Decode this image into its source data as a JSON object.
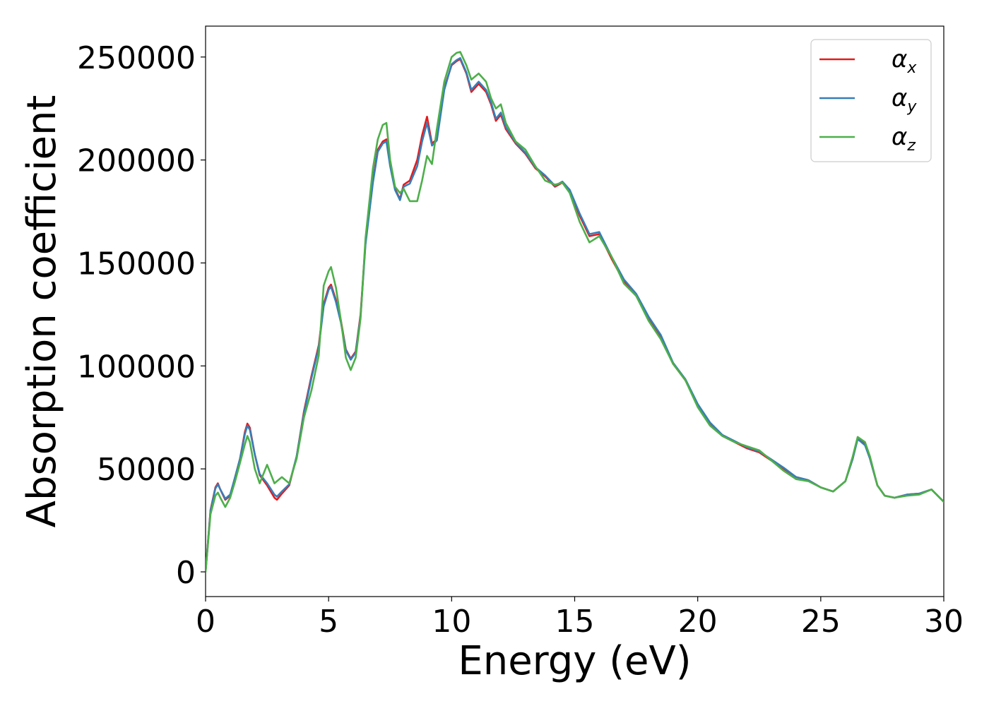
{
  "chart_data": {
    "type": "line",
    "xlabel": "Energy (eV)",
    "ylabel": "Absorption coefficient",
    "xlim": [
      0,
      30
    ],
    "ylim": [
      -12000,
      265000
    ],
    "xticks": [
      0,
      5,
      10,
      15,
      20,
      25,
      30
    ],
    "xtick_labels": [
      "0",
      "5",
      "10",
      "15",
      "20",
      "25",
      "30"
    ],
    "yticks": [
      0,
      50000,
      100000,
      150000,
      200000,
      250000
    ],
    "ytick_labels": [
      "0",
      "50000",
      "100000",
      "150000",
      "200000",
      "250000"
    ],
    "grid": false,
    "legend_position": "top-right",
    "series": [
      {
        "name": "α",
        "subscript": "x",
        "color": "#e41a1c",
        "x": [
          0,
          0.2,
          0.4,
          0.5,
          0.6,
          0.8,
          1.0,
          1.2,
          1.4,
          1.6,
          1.7,
          1.8,
          2.0,
          2.2,
          2.5,
          2.8,
          2.9,
          3.1,
          3.4,
          3.7,
          4.0,
          4.3,
          4.6,
          4.8,
          5.0,
          5.1,
          5.3,
          5.5,
          5.7,
          5.9,
          6.1,
          6.3,
          6.5,
          6.8,
          7.0,
          7.2,
          7.35,
          7.5,
          7.7,
          7.9,
          8.05,
          8.3,
          8.6,
          8.8,
          9.0,
          9.2,
          9.4,
          9.7,
          10.0,
          10.2,
          10.35,
          10.6,
          10.8,
          11.1,
          11.4,
          11.6,
          11.8,
          12.0,
          12.2,
          12.6,
          13.0,
          13.4,
          13.8,
          14.2,
          14.5,
          14.8,
          15.2,
          15.6,
          16.0,
          16.5,
          17.0,
          17.5,
          18.0,
          18.5,
          19.0,
          19.5,
          20.0,
          20.5,
          21.0,
          21.5,
          22.0,
          22.5,
          23.0,
          23.5,
          24.0,
          24.5,
          25.0,
          25.5,
          26.0,
          26.3,
          26.5,
          26.8,
          27.0,
          27.3,
          27.6,
          28.0,
          28.5,
          29.0,
          29.5,
          30.0
        ],
        "y": [
          0,
          30000,
          41000,
          43000,
          40000,
          35000,
          37000,
          46000,
          55000,
          68000,
          72000,
          70000,
          57000,
          47000,
          42000,
          36000,
          35000,
          38000,
          42000,
          56000,
          78000,
          95000,
          110000,
          130000,
          138000,
          139500,
          132000,
          122000,
          108000,
          103500,
          107000,
          125000,
          160000,
          190000,
          205000,
          209000,
          210000,
          198000,
          186000,
          181000,
          188000,
          190000,
          200000,
          212000,
          221000,
          208000,
          210000,
          235000,
          246000,
          248000,
          249000,
          242000,
          233000,
          237000,
          233000,
          227000,
          219000,
          222000,
          215000,
          208000,
          203000,
          196000,
          192000,
          187000,
          189000,
          185000,
          173000,
          163000,
          164000,
          152000,
          141000,
          134000,
          123000,
          114000,
          101000,
          93000,
          81000,
          72000,
          66000,
          63000,
          60000,
          58000,
          54000,
          50000,
          46000,
          44500,
          41000,
          39000,
          44000,
          55000,
          65000,
          62000,
          55000,
          42000,
          37000,
          36000,
          37500,
          38000,
          40000,
          34000
        ]
      },
      {
        "name": "α",
        "subscript": "y",
        "color": "#377eb8",
        "x": [
          0,
          0.2,
          0.4,
          0.5,
          0.6,
          0.8,
          1.0,
          1.2,
          1.4,
          1.6,
          1.7,
          1.8,
          2.0,
          2.2,
          2.5,
          2.8,
          2.9,
          3.1,
          3.4,
          3.7,
          4.0,
          4.3,
          4.6,
          4.8,
          5.0,
          5.1,
          5.3,
          5.5,
          5.7,
          5.9,
          6.1,
          6.3,
          6.5,
          6.8,
          7.0,
          7.2,
          7.35,
          7.5,
          7.7,
          7.9,
          8.05,
          8.3,
          8.6,
          8.8,
          9.0,
          9.2,
          9.4,
          9.7,
          10.0,
          10.2,
          10.35,
          10.6,
          10.8,
          11.1,
          11.4,
          11.6,
          11.8,
          12.0,
          12.2,
          12.6,
          13.0,
          13.4,
          13.8,
          14.2,
          14.5,
          14.8,
          15.2,
          15.6,
          16.0,
          16.5,
          17.0,
          17.5,
          18.0,
          18.5,
          19.0,
          19.5,
          20.0,
          20.5,
          21.0,
          21.5,
          22.0,
          22.5,
          23.0,
          23.5,
          24.0,
          24.5,
          25.0,
          25.5,
          26.0,
          26.3,
          26.5,
          26.8,
          27.0,
          27.3,
          27.6,
          28.0,
          28.5,
          29.0,
          29.5,
          30.0
        ],
        "y": [
          0,
          29500,
          40500,
          42500,
          40000,
          35500,
          37500,
          46000,
          55000,
          67000,
          71000,
          69000,
          57000,
          47500,
          43000,
          37500,
          36500,
          39000,
          42500,
          56000,
          77000,
          94000,
          109000,
          129000,
          137000,
          138500,
          131000,
          121000,
          107500,
          103000,
          106500,
          124000,
          159000,
          189000,
          204000,
          208000,
          209000,
          197000,
          185500,
          180500,
          187000,
          188500,
          197000,
          209000,
          218000,
          207000,
          209500,
          234000,
          246500,
          248500,
          249500,
          242500,
          234000,
          238000,
          234000,
          228000,
          220000,
          223000,
          216000,
          208500,
          203500,
          196500,
          192500,
          187500,
          189500,
          185500,
          174000,
          164000,
          165000,
          153000,
          142000,
          135000,
          124000,
          115000,
          101500,
          93500,
          81500,
          72500,
          66500,
          63500,
          60500,
          58500,
          54500,
          50500,
          46000,
          44500,
          41000,
          39000,
          44000,
          55000,
          64500,
          61500,
          55000,
          42000,
          37000,
          36000,
          37500,
          38000,
          40000,
          34000
        ]
      },
      {
        "name": "α",
        "subscript": "z",
        "color": "#4daf4a",
        "x": [
          0,
          0.2,
          0.4,
          0.5,
          0.6,
          0.8,
          1.0,
          1.2,
          1.4,
          1.6,
          1.7,
          1.8,
          2.0,
          2.2,
          2.5,
          2.8,
          2.9,
          3.1,
          3.4,
          3.7,
          4.0,
          4.3,
          4.6,
          4.8,
          5.0,
          5.1,
          5.3,
          5.5,
          5.7,
          5.9,
          6.1,
          6.3,
          6.5,
          6.8,
          7.0,
          7.2,
          7.35,
          7.5,
          7.7,
          7.9,
          8.05,
          8.3,
          8.6,
          8.8,
          9.0,
          9.2,
          9.4,
          9.7,
          10.0,
          10.2,
          10.35,
          10.6,
          10.8,
          11.1,
          11.4,
          11.6,
          11.8,
          12.0,
          12.2,
          12.6,
          13.0,
          13.4,
          13.8,
          14.2,
          14.5,
          14.8,
          15.2,
          15.6,
          16.0,
          16.5,
          17.0,
          17.5,
          18.0,
          18.5,
          19.0,
          19.5,
          20.0,
          20.5,
          21.0,
          21.5,
          22.0,
          22.5,
          23.0,
          23.5,
          24.0,
          24.5,
          25.0,
          25.5,
          26.0,
          26.3,
          26.5,
          26.8,
          27.0,
          27.3,
          27.6,
          28.0,
          28.5,
          29.0,
          29.5,
          30.0
        ],
        "y": [
          0,
          28000,
          37000,
          38500,
          36000,
          31500,
          36000,
          44000,
          53000,
          62000,
          66000,
          63000,
          50000,
          43000,
          52000,
          43000,
          44000,
          46000,
          43000,
          55000,
          75000,
          88000,
          105000,
          139000,
          146000,
          148000,
          138000,
          122000,
          104000,
          98000,
          104000,
          123000,
          162000,
          196000,
          210000,
          217000,
          218000,
          200000,
          187000,
          184000,
          186000,
          180000,
          180000,
          190000,
          202000,
          198000,
          215000,
          238000,
          250000,
          252000,
          252500,
          246000,
          239000,
          242000,
          238000,
          230000,
          225000,
          227000,
          218000,
          209000,
          205000,
          197000,
          190000,
          188000,
          189000,
          184000,
          170000,
          160000,
          163000,
          153000,
          140000,
          134000,
          122000,
          113000,
          101000,
          93000,
          80000,
          71000,
          66000,
          63000,
          61000,
          59000,
          54000,
          49000,
          45000,
          44000,
          41000,
          39000,
          44000,
          56000,
          65500,
          63000,
          56000,
          42000,
          37000,
          36000,
          37000,
          37500,
          40000,
          34000
        ]
      }
    ]
  }
}
